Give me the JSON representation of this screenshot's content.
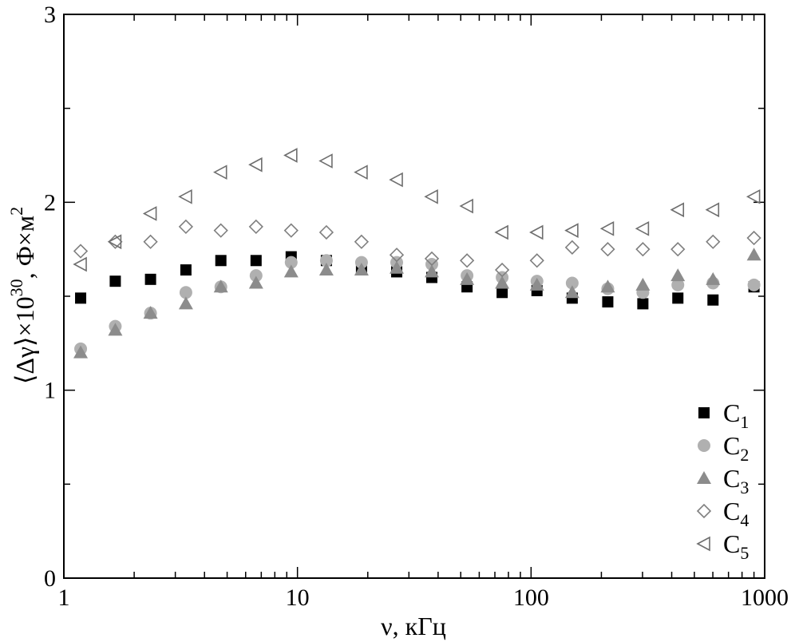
{
  "chart_data": {
    "type": "scatter",
    "title": "",
    "xlabel": "ν, кГц",
    "ylabel_parts": {
      "pre": "⟨Δγ⟩×10",
      "exp": "30",
      "unit": ", Ф×м",
      "unit_exp": "2"
    },
    "x_scale": "log",
    "xlim": [
      1,
      1000
    ],
    "ylim": [
      0,
      3
    ],
    "x_ticks": [
      "1",
      "10",
      "100",
      "1000"
    ],
    "y_ticks": [
      "0",
      "1",
      "2",
      "3"
    ],
    "grid": false,
    "legend_position": "bottom-right",
    "series": [
      {
        "name": "C",
        "sub": "1",
        "marker": "square",
        "color": "#000000",
        "x": [
          1.18,
          1.66,
          2.35,
          3.33,
          4.7,
          6.65,
          9.4,
          13.3,
          18.8,
          26.6,
          37.6,
          53.2,
          75.2,
          106,
          150,
          213,
          301,
          425,
          601,
          900
        ],
        "y": [
          1.49,
          1.58,
          1.59,
          1.64,
          1.69,
          1.69,
          1.71,
          1.69,
          1.65,
          1.63,
          1.6,
          1.55,
          1.52,
          1.53,
          1.49,
          1.47,
          1.46,
          1.49,
          1.48,
          1.55
        ]
      },
      {
        "name": "C",
        "sub": "2",
        "marker": "circle",
        "color": "#b0b0b0",
        "x": [
          1.18,
          1.66,
          2.35,
          3.33,
          4.7,
          6.65,
          9.4,
          13.3,
          18.8,
          26.6,
          37.6,
          53.2,
          75.2,
          106,
          150,
          213,
          301,
          425,
          601,
          900
        ],
        "y": [
          1.22,
          1.34,
          1.41,
          1.52,
          1.55,
          1.61,
          1.68,
          1.69,
          1.68,
          1.68,
          1.67,
          1.61,
          1.6,
          1.58,
          1.57,
          1.54,
          1.52,
          1.56,
          1.57,
          1.56
        ]
      },
      {
        "name": "C",
        "sub": "3",
        "marker": "triangle",
        "color": "#8c8c8c",
        "x": [
          1.18,
          1.66,
          2.35,
          3.33,
          4.7,
          6.65,
          9.4,
          13.3,
          18.8,
          26.6,
          37.6,
          53.2,
          75.2,
          106,
          150,
          213,
          301,
          425,
          601,
          900
        ],
        "y": [
          1.2,
          1.32,
          1.41,
          1.46,
          1.55,
          1.57,
          1.63,
          1.64,
          1.64,
          1.65,
          1.63,
          1.59,
          1.57,
          1.56,
          1.52,
          1.55,
          1.56,
          1.61,
          1.59,
          1.72
        ]
      },
      {
        "name": "C",
        "sub": "4",
        "marker": "diamond",
        "color": "#7f7f7f",
        "x": [
          1.18,
          1.66,
          2.35,
          3.33,
          4.7,
          6.65,
          9.4,
          13.3,
          18.8,
          26.6,
          37.6,
          53.2,
          75.2,
          106,
          150,
          213,
          301,
          425,
          601,
          900
        ],
        "y": [
          1.74,
          1.79,
          1.79,
          1.87,
          1.85,
          1.87,
          1.85,
          1.84,
          1.79,
          1.72,
          1.7,
          1.69,
          1.64,
          1.69,
          1.76,
          1.75,
          1.75,
          1.75,
          1.79,
          1.81
        ]
      },
      {
        "name": "C",
        "sub": "5",
        "marker": "triangle-left",
        "color": "#6e6e6e",
        "x": [
          1.18,
          1.66,
          2.35,
          3.33,
          4.7,
          6.65,
          9.4,
          13.3,
          18.8,
          26.6,
          37.6,
          53.2,
          75.2,
          106,
          150,
          213,
          301,
          425,
          601,
          900
        ],
        "y": [
          1.67,
          1.79,
          1.94,
          2.03,
          2.16,
          2.2,
          2.25,
          2.22,
          2.16,
          2.12,
          2.03,
          1.98,
          1.84,
          1.84,
          1.85,
          1.86,
          1.86,
          1.96,
          1.96,
          2.03
        ]
      }
    ]
  }
}
